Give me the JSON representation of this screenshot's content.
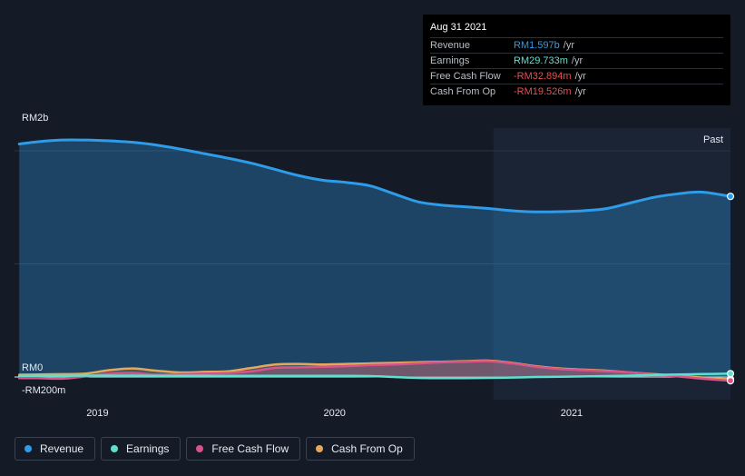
{
  "tooltip": {
    "date": "Aug 31 2021",
    "rows": [
      {
        "label": "Revenue",
        "value": "RM1.597b",
        "unit": "/yr",
        "color": "#2e9ce8"
      },
      {
        "label": "Earnings",
        "value": "RM29.733m",
        "unit": "/yr",
        "color": "#5ee0cf"
      },
      {
        "label": "Free Cash Flow",
        "value": "-RM32.894m",
        "unit": "/yr",
        "color": "#e84e52"
      },
      {
        "label": "Cash From Op",
        "value": "-RM19.526m",
        "unit": "/yr",
        "color": "#e84e52"
      }
    ]
  },
  "legend": [
    {
      "label": "Revenue",
      "color": "#2e9ce8"
    },
    {
      "label": "Earnings",
      "color": "#5ee0cf"
    },
    {
      "label": "Free Cash Flow",
      "color": "#d9538a"
    },
    {
      "label": "Cash From Op",
      "color": "#e5a85a"
    }
  ],
  "chart_data": {
    "type": "area",
    "y_tick_labels": [
      "RM2b",
      "RM0",
      "-RM200m"
    ],
    "x_tick_labels": [
      "2019",
      "2020",
      "2021"
    ],
    "x_ticks": [
      2019,
      2020,
      2021
    ],
    "past_label": "Past",
    "xlim": [
      2018.65,
      2021.67
    ],
    "ylim": [
      -200,
      2200
    ],
    "highlight_start": 2020.67,
    "x": [
      2018.67,
      2018.75,
      2018.85,
      2018.95,
      2019.05,
      2019.15,
      2019.25,
      2019.35,
      2019.45,
      2019.55,
      2019.65,
      2019.75,
      2019.85,
      2019.95,
      2020.05,
      2020.15,
      2020.25,
      2020.35,
      2020.45,
      2020.55,
      2020.65,
      2020.75,
      2020.85,
      2020.95,
      2021.05,
      2021.15,
      2021.25,
      2021.35,
      2021.45,
      2021.55,
      2021.67
    ],
    "series": [
      {
        "name": "Revenue",
        "color": "#2e9ce8",
        "values": [
          2060,
          2080,
          2095,
          2095,
          2088,
          2075,
          2050,
          2015,
          1975,
          1935,
          1890,
          1835,
          1780,
          1740,
          1720,
          1690,
          1620,
          1550,
          1520,
          1505,
          1490,
          1470,
          1460,
          1462,
          1470,
          1490,
          1540,
          1590,
          1620,
          1635,
          1597
        ]
      },
      {
        "name": "Earnings",
        "color": "#5ee0cf",
        "values": [
          10,
          10,
          10,
          12,
          12,
          12,
          10,
          10,
          10,
          10,
          10,
          10,
          10,
          10,
          10,
          8,
          0,
          -8,
          -10,
          -10,
          -8,
          -5,
          0,
          2,
          5,
          8,
          12,
          18,
          22,
          26,
          29.733
        ]
      },
      {
        "name": "Free Cash Flow",
        "color": "#d9538a",
        "values": [
          -10,
          -10,
          -15,
          5,
          30,
          35,
          20,
          25,
          30,
          35,
          50,
          80,
          85,
          90,
          95,
          105,
          110,
          120,
          130,
          135,
          140,
          120,
          90,
          70,
          60,
          50,
          40,
          20,
          5,
          -15,
          -32.894
        ]
      },
      {
        "name": "Cash From Op",
        "color": "#e5a85a",
        "values": [
          20,
          22,
          25,
          30,
          60,
          75,
          55,
          40,
          45,
          50,
          80,
          110,
          115,
          110,
          115,
          120,
          125,
          130,
          135,
          140,
          145,
          125,
          95,
          75,
          65,
          55,
          40,
          25,
          10,
          -5,
          -19.526
        ]
      }
    ]
  }
}
